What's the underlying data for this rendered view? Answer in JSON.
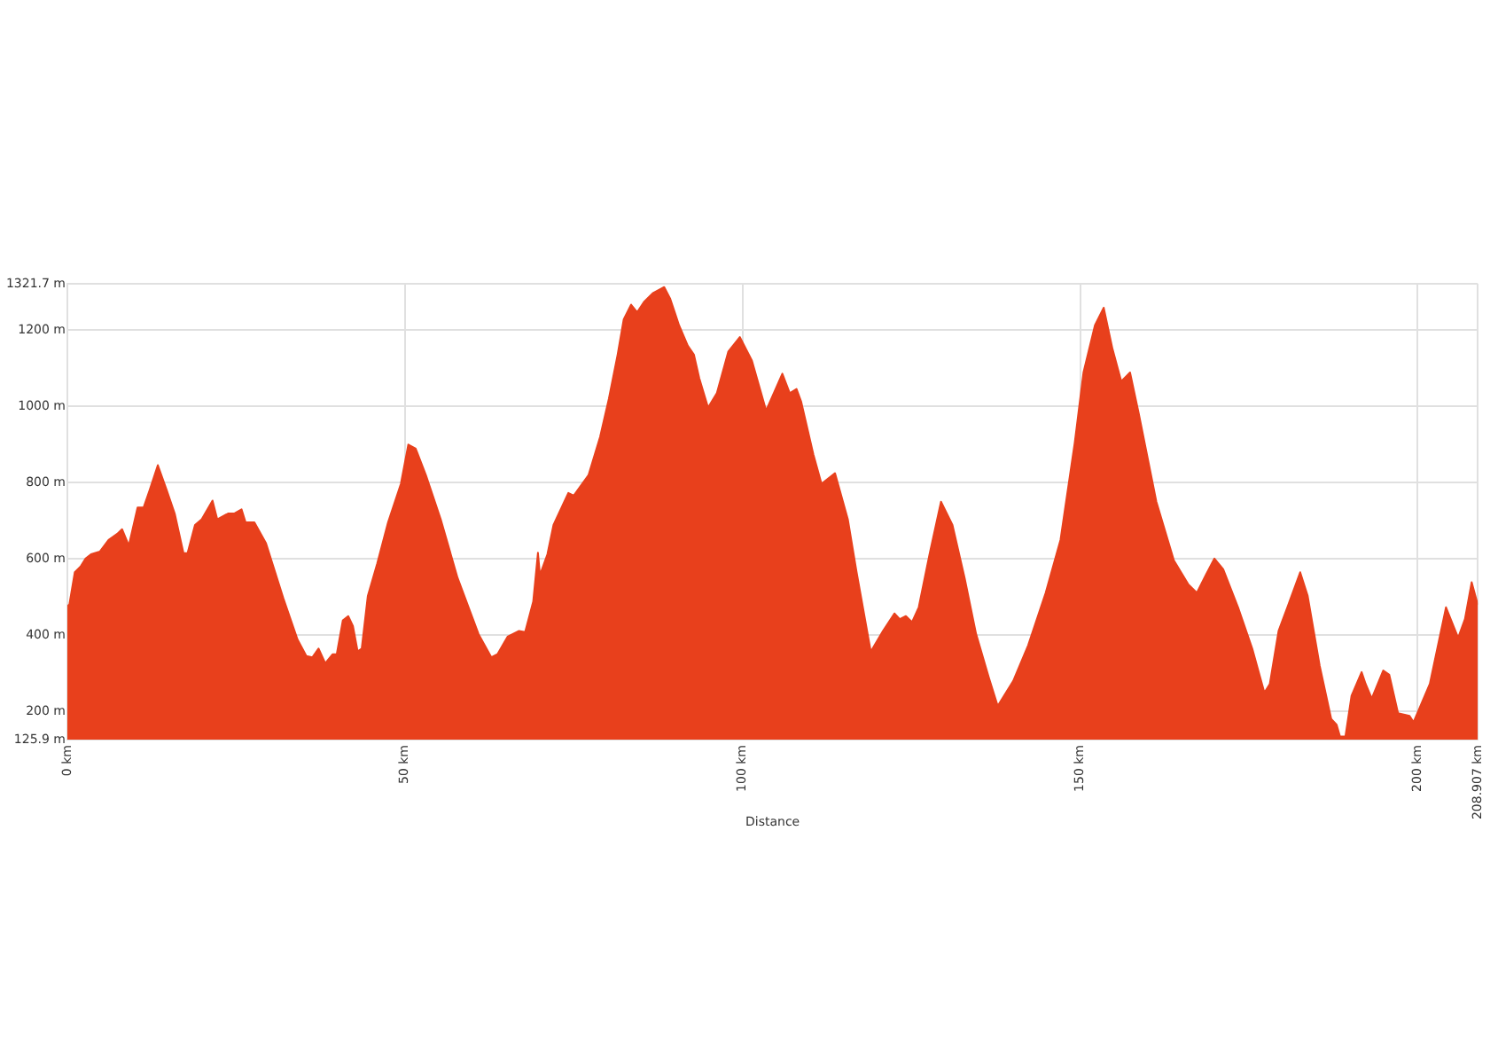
{
  "chart_data": {
    "type": "area",
    "xlabel": "Distance",
    "color": "#e8401c",
    "grid": true,
    "x": [
      0,
      0.3,
      1.1,
      2.0,
      2.7,
      3.5,
      4.8,
      6.1,
      7.4,
      8.1,
      9.1,
      10.4,
      11.3,
      12.2,
      13.4,
      14.7,
      15.9,
      17.2,
      17.8,
      18.9,
      19.9,
      21.5,
      22.2,
      23.8,
      24.7,
      25.8,
      26.4,
      27.7,
      29.4,
      32.0,
      34.1,
      35.4,
      36.3,
      37.2,
      38.2,
      39.3,
      39.9,
      40.8,
      41.6,
      42.3,
      43.0,
      43.6,
      44.5,
      45.9,
      47.5,
      49.4,
      50.5,
      51.6,
      53.1,
      55.3,
      57.8,
      60.9,
      62.8,
      63.7,
      65.2,
      66.9,
      67.8,
      69.0,
      69.7,
      70.0,
      71.1,
      72.0,
      74.2,
      75.0,
      77.2,
      78.9,
      80.2,
      81.5,
      82.4,
      83.5,
      84.4,
      85.4,
      86.7,
      88.4,
      89.3,
      90.6,
      91.9,
      92.8,
      93.6,
      94.9,
      96.2,
      97.9,
      99.6,
      101.4,
      103.5,
      105.9,
      107.0,
      108.0,
      108.7,
      110.5,
      111.7,
      113.7,
      115.6,
      116.9,
      119.0,
      120.8,
      122.5,
      123.3,
      124.2,
      125.1,
      126.1,
      127.7,
      129.4,
      131.1,
      132.9,
      134.6,
      136.5,
      137.8,
      140.1,
      142.3,
      144.9,
      147.1,
      149.2,
      150.5,
      152.2,
      153.5,
      154.8,
      156.1,
      157.4,
      158.7,
      161.3,
      163.9,
      166.0,
      167.3,
      168.6,
      169.9,
      171.2,
      173.4,
      175.5,
      177.3,
      178.1,
      179.4,
      180.7,
      182.6,
      183.7,
      185.5,
      187.2,
      188.0,
      188.5,
      189.3,
      190.2,
      191.7,
      192.3,
      193.2,
      194.9,
      195.8,
      197.1,
      198.8,
      199.4,
      201.8,
      204.2,
      206.0,
      207.0,
      208.0,
      208.907
    ],
    "values": [
      476,
      481,
      565,
      581,
      601,
      612,
      619,
      650,
      666,
      678,
      635,
      735,
      735,
      781,
      846,
      781,
      719,
      615,
      615,
      689,
      704,
      753,
      704,
      719,
      719,
      730,
      696,
      696,
      642,
      496,
      388,
      345,
      342,
      365,
      326,
      350,
      350,
      439,
      450,
      424,
      357,
      365,
      503,
      588,
      696,
      797,
      900,
      889,
      820,
      704,
      550,
      403,
      342,
      350,
      396,
      411,
      408,
      488,
      616,
      558,
      612,
      689,
      773,
      766,
      820,
      920,
      1020,
      1136,
      1228,
      1267,
      1247,
      1274,
      1297,
      1313,
      1282,
      1213,
      1159,
      1136,
      1074,
      997,
      1035,
      1144,
      1182,
      1120,
      989,
      1086,
      1035,
      1046,
      1012,
      874,
      797,
      825,
      704,
      565,
      357,
      411,
      457,
      442,
      450,
      434,
      473,
      612,
      750,
      689,
      550,
      403,
      288,
      214,
      280,
      373,
      511,
      650,
      904,
      1089,
      1213,
      1259,
      1151,
      1066,
      1089,
      981,
      750,
      596,
      534,
      511,
      557,
      601,
      573,
      473,
      365,
      249,
      272,
      411,
      473,
      565,
      504,
      319,
      180,
      165,
      134,
      134,
      241,
      303,
      272,
      234,
      307,
      296,
      195,
      188,
      172,
      272,
      473,
      393,
      442,
      539,
      480
    ],
    "xlim": [
      0,
      208.907
    ],
    "xticks": [
      {
        "value": 0,
        "label": "0 km"
      },
      {
        "value": 50,
        "label": "50 km"
      },
      {
        "value": 100,
        "label": "100 km"
      },
      {
        "value": 150,
        "label": "150 km"
      },
      {
        "value": 200,
        "label": "200 km"
      },
      {
        "value": 208.907,
        "label": "208.907 km"
      }
    ],
    "ylim": [
      125.9,
      1321.7
    ],
    "yticks": [
      {
        "value": 125.9,
        "label": "125.9 m"
      },
      {
        "value": 200,
        "label": "200 m"
      },
      {
        "value": 400,
        "label": "400 m"
      },
      {
        "value": 600,
        "label": "600 m"
      },
      {
        "value": 800,
        "label": "800 m"
      },
      {
        "value": 1000,
        "label": "1000 m"
      },
      {
        "value": 1200,
        "label": "1200 m"
      },
      {
        "value": 1321.7,
        "label": "1321.7 m"
      }
    ]
  }
}
